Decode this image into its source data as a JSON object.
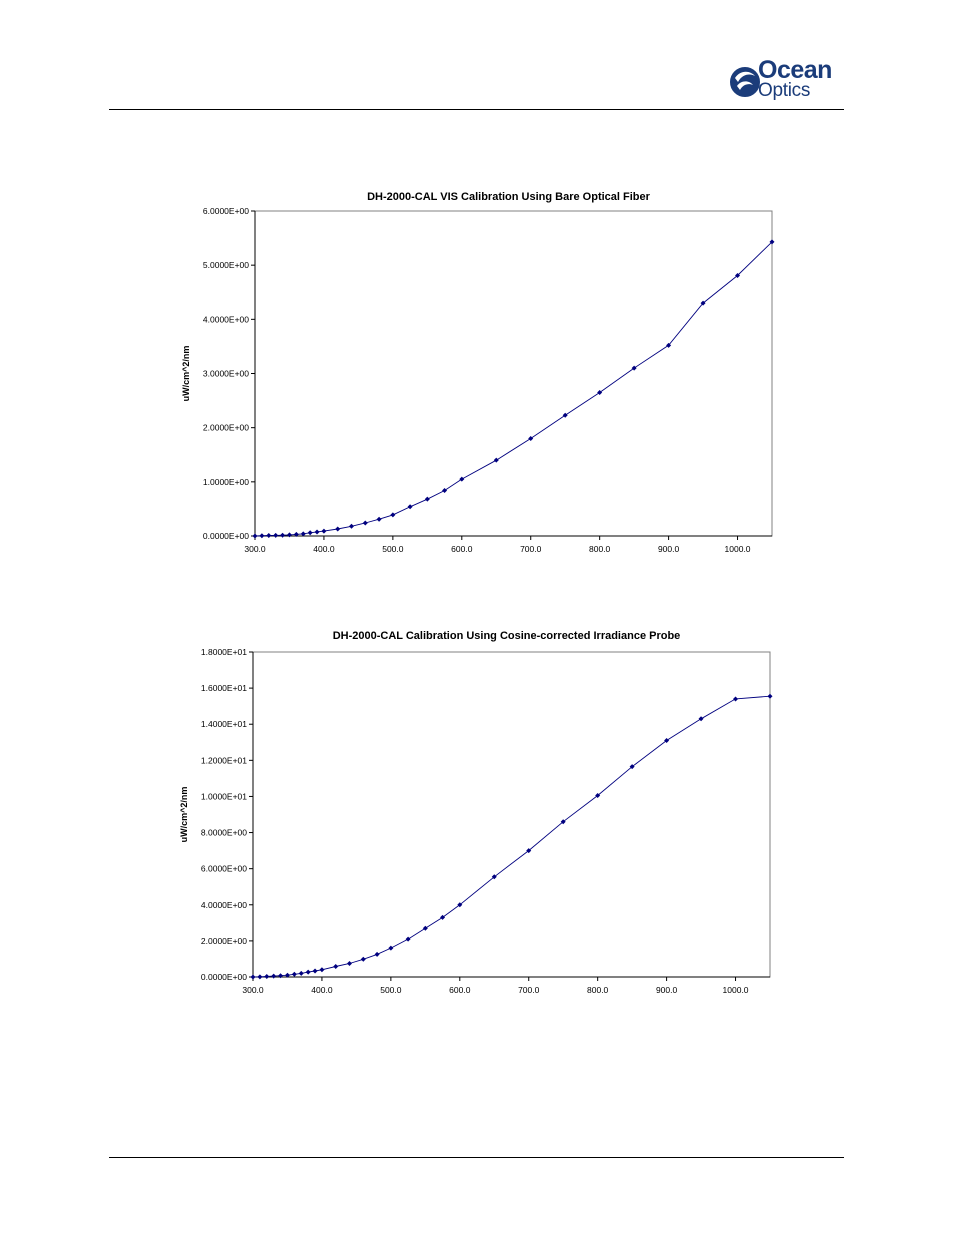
{
  "logo": {
    "word1": "Ocean",
    "word2": "Optics",
    "brand_color": "#1b3c7a"
  },
  "chart_data": [
    {
      "type": "line",
      "title": "DH-2000-CAL VIS Calibration Using Bare Optical Fiber",
      "ylabel": "uW/cm^2/nm",
      "xlabel": "",
      "xlim": [
        300,
        1050
      ],
      "ylim": [
        0,
        6
      ],
      "x_ticks": [
        "300.0",
        "400.0",
        "500.0",
        "600.0",
        "700.0",
        "800.0",
        "900.0",
        "1000.0"
      ],
      "y_ticks": [
        "0.0000E+00",
        "1.0000E+00",
        "2.0000E+00",
        "3.0000E+00",
        "4.0000E+00",
        "5.0000E+00",
        "6.0000E+00"
      ],
      "grid": false,
      "line_color": "#00007f",
      "x": [
        300,
        310,
        320,
        330,
        340,
        350,
        360,
        370,
        380,
        390,
        400,
        420,
        440,
        460,
        480,
        500,
        525,
        550,
        575,
        600,
        650,
        700,
        750,
        800,
        850,
        900,
        950,
        1000,
        1050
      ],
      "y": [
        0.0,
        0.005,
        0.01,
        0.012,
        0.015,
        0.02,
        0.03,
        0.04,
        0.06,
        0.075,
        0.09,
        0.13,
        0.18,
        0.24,
        0.31,
        0.39,
        0.54,
        0.68,
        0.84,
        1.05,
        1.4,
        1.8,
        2.23,
        2.65,
        3.1,
        3.52,
        4.3,
        4.81,
        5.43
      ]
    },
    {
      "type": "line",
      "title": "DH-2000-CAL Calibration Using Cosine-corrected Irradiance Probe",
      "ylabel": "uW/cm^2/nm",
      "xlabel": "",
      "xlim": [
        300,
        1050
      ],
      "ylim": [
        0,
        18
      ],
      "x_ticks": [
        "300.0",
        "400.0",
        "500.0",
        "600.0",
        "700.0",
        "800.0",
        "900.0",
        "1000.0"
      ],
      "y_ticks": [
        "0.0000E+00",
        "2.0000E+00",
        "4.0000E+00",
        "6.0000E+00",
        "8.0000E+00",
        "1.0000E+01",
        "1.2000E+01",
        "1.4000E+01",
        "1.6000E+01",
        "1.8000E+01"
      ],
      "grid": false,
      "line_color": "#00007f",
      "x": [
        300,
        310,
        320,
        330,
        340,
        350,
        360,
        370,
        380,
        390,
        400,
        420,
        440,
        460,
        480,
        500,
        525,
        550,
        575,
        600,
        650,
        700,
        750,
        800,
        850,
        900,
        950,
        1000,
        1050
      ],
      "y": [
        0.0,
        0.01,
        0.03,
        0.05,
        0.07,
        0.1,
        0.15,
        0.2,
        0.27,
        0.33,
        0.4,
        0.58,
        0.75,
        0.98,
        1.25,
        1.6,
        2.1,
        2.7,
        3.3,
        4.0,
        5.55,
        7.0,
        8.6,
        10.05,
        11.65,
        13.1,
        14.3,
        15.4,
        15.55
      ]
    }
  ]
}
